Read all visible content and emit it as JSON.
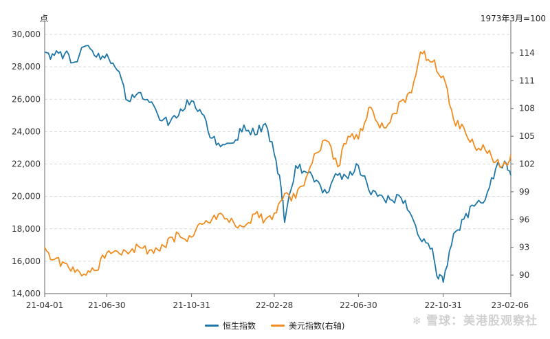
{
  "chart_data": {
    "type": "line",
    "left_axis_unit": "点",
    "right_axis_unit": "1973年3月=100",
    "x_tick_labels": [
      "21-04-01",
      "21-06-30",
      "21-10-31",
      "22-02-28",
      "22-06-30",
      "22-10-31",
      "23-02-06"
    ],
    "ylim_left": [
      14000,
      30000
    ],
    "yticks_left": [
      "14,000",
      "16,000",
      "18,000",
      "20,000",
      "22,000",
      "24,000",
      "26,000",
      "28,000",
      "30,000"
    ],
    "ylim_right": [
      88,
      116
    ],
    "yticks_right": [
      "90",
      "93",
      "96",
      "99",
      "102",
      "105",
      "108",
      "111",
      "114"
    ],
    "grid": "horizontal dashed",
    "legend_position": "bottom",
    "series": [
      {
        "name": "恒生指数",
        "axis": "left",
        "color": "#1f77a8",
        "points": [
          [
            "21-04-01",
            28900
          ],
          [
            "21-04-15",
            28700
          ],
          [
            "21-04-30",
            28800
          ],
          [
            "21-05-15",
            28300
          ],
          [
            "21-05-31",
            29300
          ],
          [
            "21-06-15",
            28600
          ],
          [
            "21-06-30",
            28800
          ],
          [
            "21-07-15",
            27800
          ],
          [
            "21-07-31",
            25900
          ],
          [
            "21-08-15",
            26400
          ],
          [
            "21-08-31",
            25800
          ],
          [
            "21-09-15",
            24700
          ],
          [
            "21-09-30",
            24600
          ],
          [
            "21-10-15",
            25400
          ],
          [
            "21-10-31",
            25900
          ],
          [
            "21-11-15",
            25100
          ],
          [
            "21-11-30",
            23600
          ],
          [
            "21-12-15",
            23200
          ],
          [
            "21-12-31",
            23300
          ],
          [
            "22-01-15",
            24400
          ],
          [
            "22-01-31",
            23800
          ],
          [
            "22-02-15",
            24500
          ],
          [
            "22-02-28",
            22600
          ],
          [
            "22-03-10",
            20500
          ],
          [
            "22-03-15",
            18400
          ],
          [
            "22-03-31",
            21900
          ],
          [
            "22-04-15",
            21500
          ],
          [
            "22-04-30",
            21000
          ],
          [
            "22-05-15",
            20200
          ],
          [
            "22-05-31",
            21300
          ],
          [
            "22-06-15",
            21100
          ],
          [
            "22-06-30",
            21900
          ],
          [
            "22-07-15",
            20400
          ],
          [
            "22-07-31",
            20100
          ],
          [
            "22-08-15",
            19800
          ],
          [
            "22-08-31",
            19900
          ],
          [
            "22-09-15",
            18800
          ],
          [
            "22-09-30",
            17200
          ],
          [
            "22-10-15",
            16800
          ],
          [
            "22-10-24",
            14900
          ],
          [
            "22-10-31",
            14700
          ],
          [
            "22-11-15",
            17700
          ],
          [
            "22-11-30",
            18600
          ],
          [
            "22-12-15",
            19400
          ],
          [
            "22-12-31",
            19800
          ],
          [
            "23-01-15",
            21700
          ],
          [
            "23-01-31",
            22000
          ],
          [
            "23-02-06",
            21300
          ]
        ]
      },
      {
        "name": "美元指数(右轴)",
        "axis": "right",
        "color": "#f28c1f",
        "points": [
          [
            "21-04-01",
            93.0
          ],
          [
            "21-04-15",
            91.7
          ],
          [
            "21-04-30",
            91.3
          ],
          [
            "21-05-15",
            90.3
          ],
          [
            "21-05-31",
            90.0
          ],
          [
            "21-06-15",
            90.5
          ],
          [
            "21-06-30",
            92.4
          ],
          [
            "21-07-15",
            92.6
          ],
          [
            "21-07-31",
            92.3
          ],
          [
            "21-08-15",
            93.1
          ],
          [
            "21-08-31",
            92.7
          ],
          [
            "21-09-15",
            92.6
          ],
          [
            "21-09-30",
            94.1
          ],
          [
            "21-10-15",
            94.1
          ],
          [
            "21-10-31",
            94.1
          ],
          [
            "21-11-15",
            95.5
          ],
          [
            "21-11-30",
            96.1
          ],
          [
            "21-12-15",
            96.5
          ],
          [
            "21-12-31",
            95.7
          ],
          [
            "22-01-15",
            95.2
          ],
          [
            "22-01-31",
            96.6
          ],
          [
            "22-02-15",
            96.0
          ],
          [
            "22-02-28",
            96.7
          ],
          [
            "22-03-15",
            98.8
          ],
          [
            "22-03-31",
            98.3
          ],
          [
            "22-04-15",
            100.5
          ],
          [
            "22-04-30",
            103.2
          ],
          [
            "22-05-15",
            104.5
          ],
          [
            "22-05-31",
            101.7
          ],
          [
            "22-06-15",
            105.0
          ],
          [
            "22-06-30",
            104.7
          ],
          [
            "22-07-15",
            108.1
          ],
          [
            "22-07-31",
            105.9
          ],
          [
            "22-08-15",
            106.5
          ],
          [
            "22-08-31",
            108.8
          ],
          [
            "22-09-15",
            109.7
          ],
          [
            "22-09-28",
            114.1
          ],
          [
            "22-10-15",
            113.0
          ],
          [
            "22-10-31",
            111.5
          ],
          [
            "22-11-15",
            106.8
          ],
          [
            "22-11-30",
            105.9
          ],
          [
            "22-12-15",
            104.0
          ],
          [
            "22-12-31",
            103.5
          ],
          [
            "23-01-15",
            102.2
          ],
          [
            "23-01-31",
            101.9
          ],
          [
            "23-02-06",
            103.0
          ]
        ]
      }
    ]
  },
  "watermark": {
    "logo": "❄",
    "text": "雪球：美港股观察社"
  }
}
